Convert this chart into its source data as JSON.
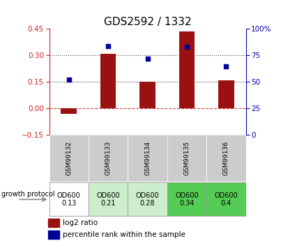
{
  "title": "GDS2592 / 1332",
  "samples": [
    "GSM99132",
    "GSM99133",
    "GSM99134",
    "GSM99135",
    "GSM99136"
  ],
  "log2_ratio": [
    -0.03,
    0.31,
    0.15,
    0.435,
    0.16
  ],
  "percentile_rank": [
    52,
    84,
    72,
    83,
    65
  ],
  "protocol_label": "growth protocol",
  "protocol_values": [
    "OD600\n0.13",
    "OD600\n0.21",
    "OD600\n0.28",
    "OD600\n0.34",
    "OD600\n0.4"
  ],
  "protocol_colors": [
    "#ffffff",
    "#cceecc",
    "#cceecc",
    "#55cc55",
    "#55cc55"
  ],
  "bar_color": "#9b1010",
  "dot_color": "#000099",
  "ylim_left": [
    -0.15,
    0.45
  ],
  "ylim_right": [
    0,
    100
  ],
  "yticks_left": [
    -0.15,
    0,
    0.15,
    0.3,
    0.45
  ],
  "yticks_right": [
    0,
    25,
    50,
    75,
    100
  ],
  "hlines": [
    0.0,
    0.15,
    0.3
  ],
  "hline_styles": [
    "dashed",
    "dotted",
    "dotted"
  ],
  "hline_colors": [
    "#cc4444",
    "#444444",
    "#444444"
  ],
  "bg_color": "#cccccc",
  "legend_log2": "log2 ratio",
  "legend_pct": "percentile rank within the sample"
}
